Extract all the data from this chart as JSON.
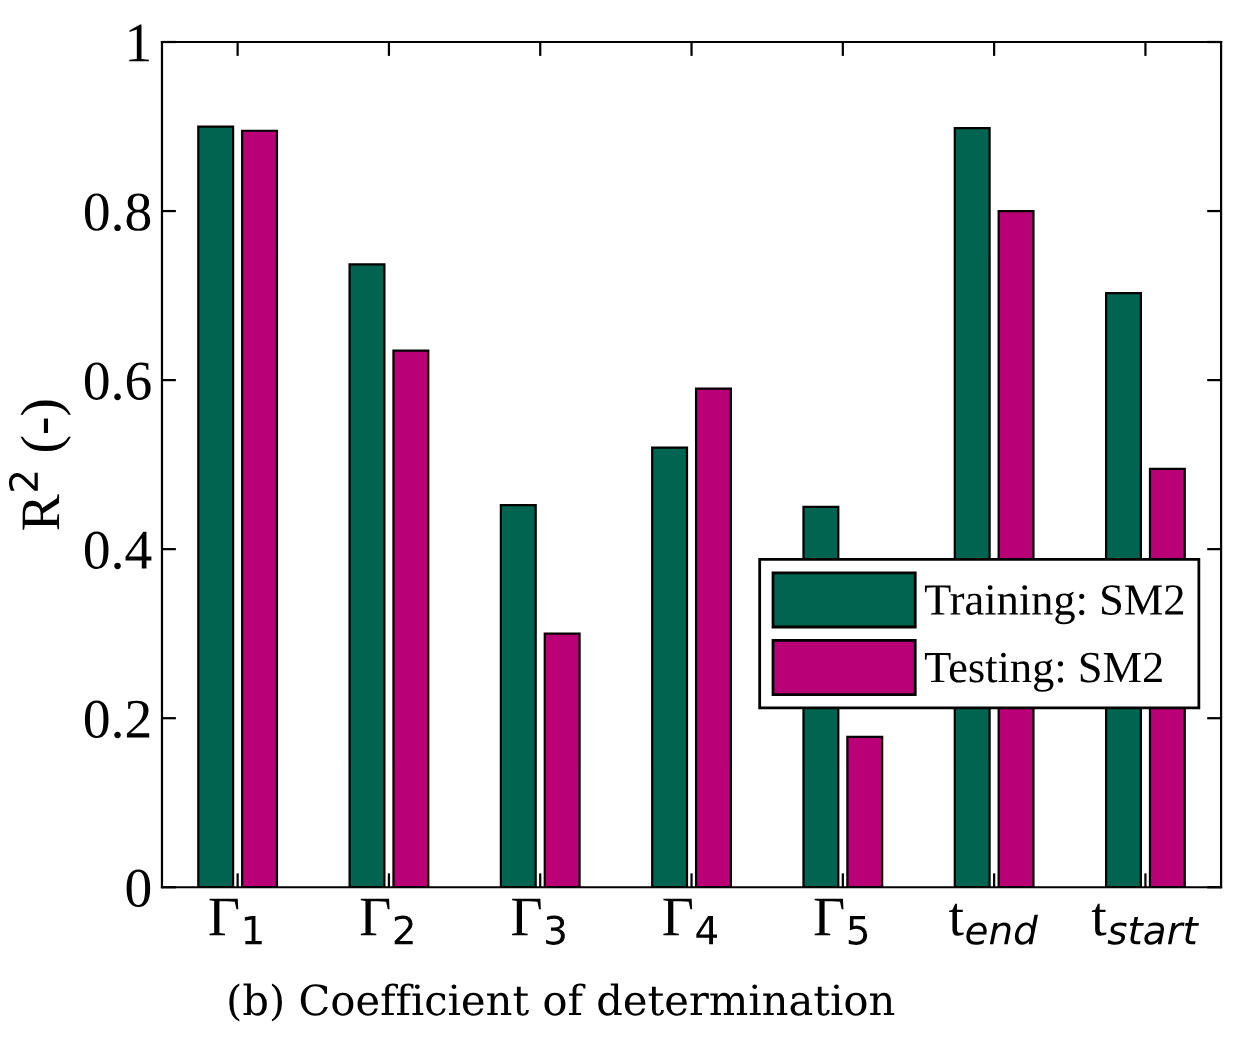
{
  "chart_data": {
    "type": "bar",
    "ylabel": "R$^{2}$ (-)",
    "categories": [
      "Γ$_{1}$",
      "Γ$_{2}$",
      "Γ$_{3}$",
      "Γ$_{4}$",
      "Γ$_{5}$",
      "t$_{end}$",
      "t$_{start}$"
    ],
    "series": [
      {
        "name": "Training: SM2",
        "color": "#006450",
        "values": [
          0.9,
          0.737,
          0.452,
          0.52,
          0.45,
          0.898,
          0.703
        ]
      },
      {
        "name": "Testing: SM2",
        "color": "#b90076",
        "values": [
          0.895,
          0.635,
          0.3,
          0.59,
          0.178,
          0.8,
          0.495
        ]
      }
    ],
    "ylim": [
      0,
      1
    ],
    "yticks": [
      0,
      0.2,
      0.4,
      0.6,
      0.8,
      1
    ],
    "grid": false,
    "legend": "center right",
    "annotations": [
      "(b) Coefficient of determination"
    ]
  }
}
